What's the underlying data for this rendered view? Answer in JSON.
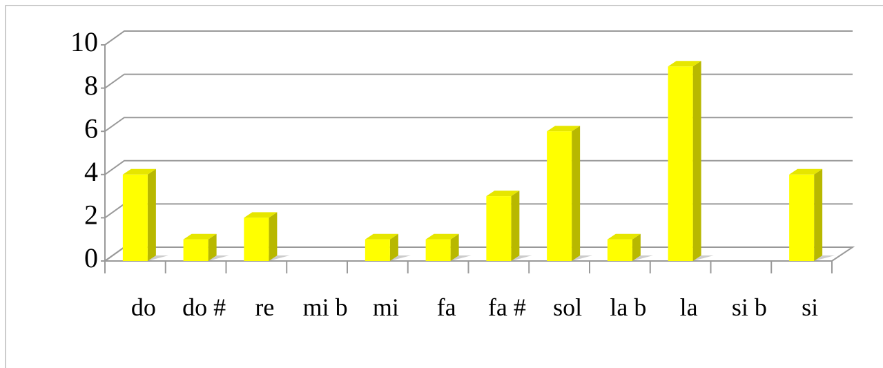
{
  "chart_data": {
    "type": "bar",
    "categories": [
      "do",
      "do #",
      "re",
      "mi b",
      "mi",
      "fa",
      "fa #",
      "sol",
      "la b",
      "la",
      "si b",
      "si"
    ],
    "values": [
      4,
      1,
      2,
      0,
      1,
      1,
      3,
      6,
      1,
      9,
      0,
      4
    ],
    "color": "#ffff00",
    "ylim": [
      0,
      10
    ],
    "yticks": [
      0,
      2,
      4,
      6,
      8,
      10
    ],
    "grid": true
  }
}
